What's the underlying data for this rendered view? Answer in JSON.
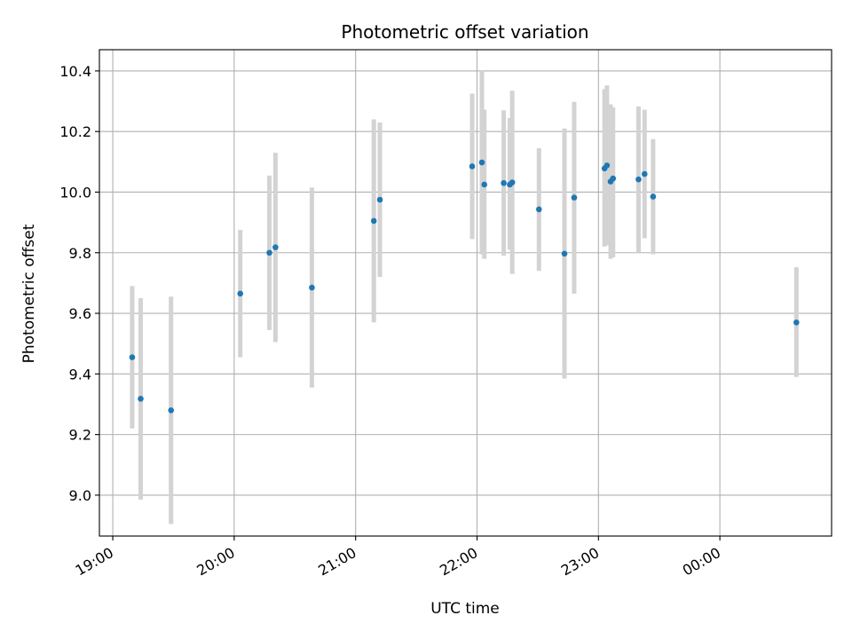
{
  "chart_data": {
    "type": "scatter",
    "title": "Photometric offset variation",
    "xlabel": "UTC time",
    "ylabel": "Photometric offset",
    "grid": true,
    "x_unit": "hours since 19:00 UTC",
    "xlim": [
      -0.11,
      5.92
    ],
    "ylim": [
      8.865,
      10.47
    ],
    "x_ticks": [
      {
        "value": 0,
        "label": "19:00"
      },
      {
        "value": 1,
        "label": "20:00"
      },
      {
        "value": 2,
        "label": "21:00"
      },
      {
        "value": 3,
        "label": "22:00"
      },
      {
        "value": 4,
        "label": "23:00"
      },
      {
        "value": 5,
        "label": "00:00"
      }
    ],
    "y_ticks": [
      {
        "value": 9.0,
        "label": "9.0"
      },
      {
        "value": 9.2,
        "label": "9.2"
      },
      {
        "value": 9.4,
        "label": "9.4"
      },
      {
        "value": 9.6,
        "label": "9.6"
      },
      {
        "value": 9.8,
        "label": "9.8"
      },
      {
        "value": 10.0,
        "label": "10.0"
      },
      {
        "value": 10.2,
        "label": "10.2"
      },
      {
        "value": 10.4,
        "label": "10.4"
      }
    ],
    "colors": {
      "point": "#1f77b4",
      "errorbar": "#d3d3d3",
      "grid": "#b0b0b0"
    },
    "points": [
      {
        "x": 0.16,
        "y": 9.455,
        "lo": 9.22,
        "hi": 9.69
      },
      {
        "x": 0.23,
        "y": 9.318,
        "lo": 8.985,
        "hi": 9.65
      },
      {
        "x": 0.48,
        "y": 9.28,
        "lo": 8.905,
        "hi": 9.655
      },
      {
        "x": 1.05,
        "y": 9.665,
        "lo": 9.455,
        "hi": 9.875
      },
      {
        "x": 1.29,
        "y": 9.8,
        "lo": 9.545,
        "hi": 10.055
      },
      {
        "x": 1.34,
        "y": 9.818,
        "lo": 9.505,
        "hi": 10.13
      },
      {
        "x": 1.64,
        "y": 9.685,
        "lo": 9.355,
        "hi": 10.015
      },
      {
        "x": 2.15,
        "y": 9.905,
        "lo": 9.57,
        "hi": 10.24
      },
      {
        "x": 2.2,
        "y": 9.975,
        "lo": 9.72,
        "hi": 10.23
      },
      {
        "x": 2.96,
        "y": 10.085,
        "lo": 9.845,
        "hi": 10.325
      },
      {
        "x": 3.04,
        "y": 10.098,
        "lo": 9.795,
        "hi": 10.4
      },
      {
        "x": 3.06,
        "y": 10.025,
        "lo": 9.78,
        "hi": 10.272
      },
      {
        "x": 3.22,
        "y": 10.03,
        "lo": 9.79,
        "hi": 10.27
      },
      {
        "x": 3.27,
        "y": 10.025,
        "lo": 9.81,
        "hi": 10.245
      },
      {
        "x": 3.29,
        "y": 10.032,
        "lo": 9.73,
        "hi": 10.335
      },
      {
        "x": 3.51,
        "y": 9.943,
        "lo": 9.74,
        "hi": 10.145
      },
      {
        "x": 3.72,
        "y": 9.797,
        "lo": 9.385,
        "hi": 10.21
      },
      {
        "x": 3.8,
        "y": 9.982,
        "lo": 9.665,
        "hi": 10.298
      },
      {
        "x": 4.05,
        "y": 10.078,
        "lo": 9.82,
        "hi": 10.34
      },
      {
        "x": 4.07,
        "y": 10.088,
        "lo": 9.825,
        "hi": 10.352
      },
      {
        "x": 4.1,
        "y": 10.035,
        "lo": 9.78,
        "hi": 10.29
      },
      {
        "x": 4.12,
        "y": 10.045,
        "lo": 9.785,
        "hi": 10.28
      },
      {
        "x": 4.33,
        "y": 10.042,
        "lo": 9.8,
        "hi": 10.283
      },
      {
        "x": 4.38,
        "y": 10.06,
        "lo": 9.848,
        "hi": 10.272
      },
      {
        "x": 4.45,
        "y": 9.985,
        "lo": 9.795,
        "hi": 10.175
      },
      {
        "x": 5.63,
        "y": 9.57,
        "lo": 9.39,
        "hi": 9.752
      }
    ]
  }
}
